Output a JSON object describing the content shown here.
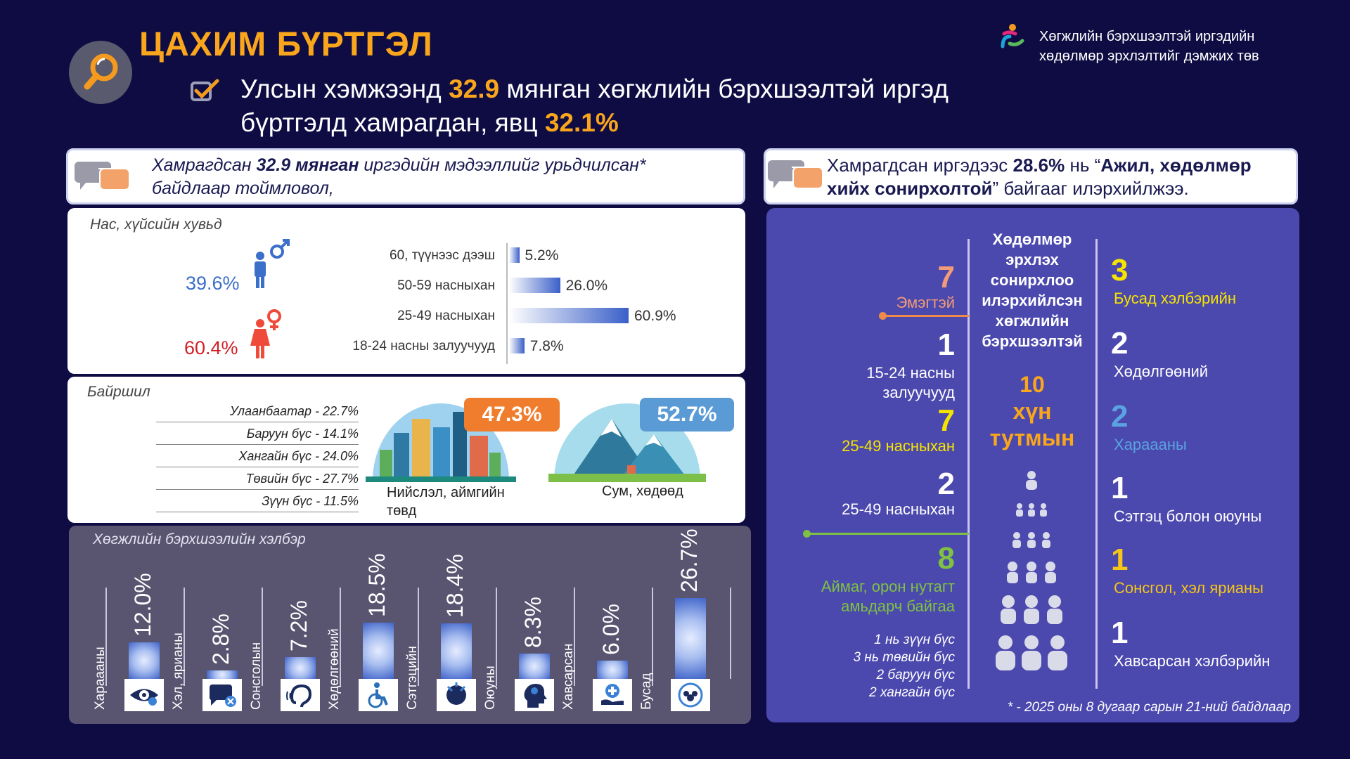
{
  "title": "ЦАХИМ БҮРТГЭЛ",
  "headline": {
    "line1_pre": "Улсын хэмжээнд ",
    "line1_num": "32.9",
    "line1_post": " мянган хөгжлийн бэрхшээлтэй иргэд",
    "line2_pre": "бүртгэлд хамрагдан, явц ",
    "line2_num": "32.1%"
  },
  "org": {
    "line1": "Хөгжлийн бэрхшээлтэй иргэдийн",
    "line2": "хөдөлмөр эрхлэлтийг дэмжих төв"
  },
  "left_callout": {
    "pre": "Хамрагдсан ",
    "bold": "32.9 мянган",
    "post": " иргэдийн мэдээллийг урьдчилсан*",
    "line2": "байдлаар тоймловол,"
  },
  "right_callout": {
    "pre": "Хамрагдсан иргэдээс ",
    "pct": "28.6%",
    "mid": " нь “",
    "bold1": "Ажил, хөдөлмөр",
    "bold2": "хийх сонирхолтой",
    "post": "” байгааг илэрхийлжээ."
  },
  "age_gender": {
    "label": "Нас, хүйсийн хувьд",
    "male_pct": "39.6%",
    "female_pct": "60.4%",
    "male_color": "#3b6fc9",
    "female_color": "#d21f26",
    "groups": [
      {
        "label": "60, түүнээс дээш",
        "value_text": "5.2%",
        "value": 5.2
      },
      {
        "label": "50-59 насныхан",
        "value_text": "26.0%",
        "value": 26.0
      },
      {
        "label": "25-49 насныхан",
        "value_text": "60.9%",
        "value": 60.9
      },
      {
        "label": "18-24 насны залуучууд",
        "value_text": "7.8%",
        "value": 7.8
      }
    ]
  },
  "location": {
    "label": "Байршил",
    "regions": [
      "Улаанбаатар - 22.7%",
      "Баруун бүс - 14.1%",
      "Хангайн бүс - 24.0%",
      "Төвийн бүс - 27.7%",
      "Зүүн бүс - 11.5%"
    ],
    "city_pct": "47.3%",
    "city_label1": "Нийслэл, аймгийн",
    "city_label2": "төвд",
    "city_badge_color": "#ef7d2d",
    "rural_pct": "52.7%",
    "rural_label": "Сум, хөдөөд",
    "rural_badge_color": "#5b9bd5"
  },
  "disability_types": {
    "label": "Хөгжлийн бэрхшээлийн хэлбэр",
    "items": [
      {
        "name": "Хараааны",
        "pct_text": "12.0%",
        "pct": 12.0,
        "icon": "eye-icon"
      },
      {
        "name": "Хэл, ярианы",
        "pct_text": "2.8%",
        "pct": 2.8,
        "icon": "speech-icon"
      },
      {
        "name": "Сонсголын",
        "pct_text": "7.2%",
        "pct": 7.2,
        "icon": "ear-icon"
      },
      {
        "name": "Хөдөлгөөний",
        "pct_text": "18.5%",
        "pct": 18.5,
        "icon": "wheelchair-icon"
      },
      {
        "name": "Сэтгэцийн",
        "pct_text": "18.4%",
        "pct": 18.4,
        "icon": "mental-icon"
      },
      {
        "name": "Оюуны",
        "pct_text": "8.3%",
        "pct": 8.3,
        "icon": "brain-icon"
      },
      {
        "name": "Хавсарсан",
        "pct_text": "6.0%",
        "pct": 6.0,
        "icon": "medical-icon"
      },
      {
        "name": "Бусад",
        "pct_text": "26.7%",
        "pct": 26.7,
        "icon": "group-icon"
      }
    ]
  },
  "employment": {
    "center_title": [
      "Хөдөлмөр",
      "эрхлэх",
      "сонирхлоо",
      "илэрхийлсэн",
      "хөгжлийн",
      "бэрхшээлтэй"
    ],
    "center_count": "10",
    "center_unit1": "хүн",
    "center_unit2": "тутмын",
    "left": [
      {
        "num": "7",
        "label": "Эмэгтэй",
        "color": "#f29b77"
      },
      {
        "num": "1",
        "label1": "15-24 насны",
        "label2": "залуучууд",
        "color": "#ffffff"
      },
      {
        "num": "7",
        "label": "25-49 насныхан",
        "color": "#f5e400"
      },
      {
        "num": "2",
        "label": "25-49 насныхан",
        "color": "#ffffff"
      },
      {
        "num": "8",
        "label1": "Аймаг, орон нутагт",
        "label2": "амьдарч байгаа",
        "color": "#7fc241"
      }
    ],
    "regions_detail": [
      "1 нь зүүн бүс",
      "3 нь төвийн бүс",
      "2 баруун бүс",
      "2 хангайн бүс"
    ],
    "right": [
      {
        "num": "3",
        "label": "Бусад хэлбэрийн",
        "color": "#f5e400"
      },
      {
        "num": "2",
        "label": "Хөдөлгөөний",
        "color": "#ffffff"
      },
      {
        "num": "2",
        "label": "Хараааны",
        "color": "#5ba3e0"
      },
      {
        "num": "1",
        "label": "Сэтгэц болон оюуны",
        "color": "#ffffff"
      },
      {
        "num": "1",
        "label": "Сонсгол, хэл ярианы",
        "color": "#f5c518"
      },
      {
        "num": "1",
        "label": "Хавсарсан хэлбэрийн",
        "color": "#ffffff"
      }
    ],
    "footnote": "* - 2025 оны 8 дугаар сарын 21-ний байдлаар"
  }
}
